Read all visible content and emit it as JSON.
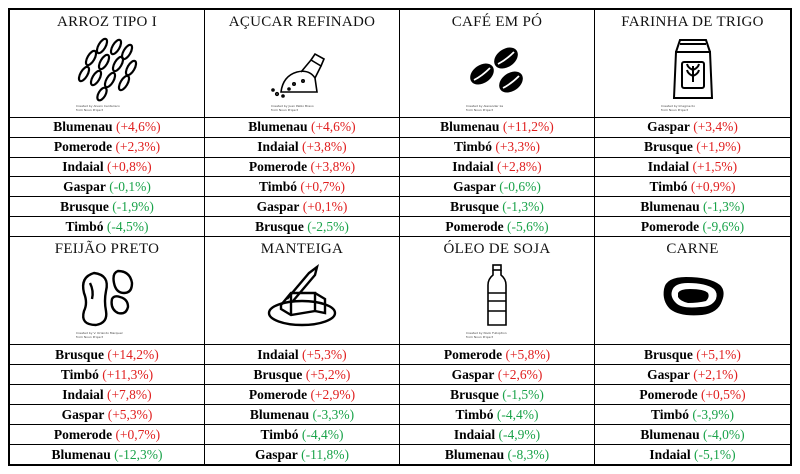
{
  "colors": {
    "increase": "#e02020",
    "decrease": "#1aa34a"
  },
  "products": [
    {
      "title": "ARROZ TIPO I",
      "icon": "rice-icon",
      "credit": [
        "Created by Alvaro Centarisco",
        "from Noun Project"
      ],
      "rows": [
        {
          "city": "Blumenau",
          "value": "(+4,6%)",
          "trend": "up"
        },
        {
          "city": "Pomerode",
          "value": "(+2,3%)",
          "trend": "up"
        },
        {
          "city": "Indaial",
          "value": "(+0,8%)",
          "trend": "up"
        },
        {
          "city": "Gaspar",
          "value": "(-0,1%)",
          "trend": "down"
        },
        {
          "city": "Brusque",
          "value": "(-1,9%)",
          "trend": "down"
        },
        {
          "city": "Timbó",
          "value": "(-4,5%)",
          "trend": "down"
        }
      ]
    },
    {
      "title": "AÇUCAR REFINADO",
      "icon": "sugar-icon",
      "credit": [
        "Created by Juan Pablo Bravo",
        "from Noun Project"
      ],
      "rows": [
        {
          "city": "Blumenau",
          "value": "(+4,6%)",
          "trend": "up"
        },
        {
          "city": "Indaial",
          "value": "(+3,8%)",
          "trend": "up"
        },
        {
          "city": "Pomerode",
          "value": "(+3,8%)",
          "trend": "up"
        },
        {
          "city": "Timbó",
          "value": "(+0,7%)",
          "trend": "up"
        },
        {
          "city": "Gaspar",
          "value": "(+0,1%)",
          "trend": "up"
        },
        {
          "city": "Brusque",
          "value": "(-2,5%)",
          "trend": "down"
        }
      ]
    },
    {
      "title": "CAFÉ EM PÓ",
      "icon": "coffee-beans-icon",
      "credit": [
        "Created by Alexander ka",
        "from Noun Project"
      ],
      "rows": [
        {
          "city": "Blumenau",
          "value": "(+11,2%)",
          "trend": "up"
        },
        {
          "city": "Timbó",
          "value": "(+3,3%)",
          "trend": "up"
        },
        {
          "city": "Indaial",
          "value": "(+2,8%)",
          "trend": "up"
        },
        {
          "city": "Gaspar",
          "value": "(-0,6%)",
          "trend": "down"
        },
        {
          "city": "Brusque",
          "value": "(-1,3%)",
          "trend": "down"
        },
        {
          "city": "Pomerode",
          "value": "(-5,6%)",
          "trend": "down"
        }
      ]
    },
    {
      "title": "FARINHA DE TRIGO",
      "icon": "flour-bag-icon",
      "credit": [
        "Created by Imagine Ilo",
        "from Noun Project"
      ],
      "rows": [
        {
          "city": "Gaspar",
          "value": "(+3,4%)",
          "trend": "up"
        },
        {
          "city": "Brusque",
          "value": "(+1,9%)",
          "trend": "up"
        },
        {
          "city": "Indaial",
          "value": "(+1,5%)",
          "trend": "up"
        },
        {
          "city": "Timbó",
          "value": "(+0,9%)",
          "trend": "up"
        },
        {
          "city": "Blumenau",
          "value": "(-1,3%)",
          "trend": "down"
        },
        {
          "city": "Pomerode",
          "value": "(-9,6%)",
          "trend": "down"
        }
      ]
    },
    {
      "title": "FEIJÃO PRETO",
      "icon": "beans-icon",
      "credit": [
        "Created by V. Orlando Marquez",
        "from Noun Project"
      ],
      "rows": [
        {
          "city": "Brusque",
          "value": "(+14,2%)",
          "trend": "up"
        },
        {
          "city": "Timbó",
          "value": "(+11,3%)",
          "trend": "up"
        },
        {
          "city": "Indaial",
          "value": "(+7,8%)",
          "trend": "up"
        },
        {
          "city": "Gaspar",
          "value": "(+5,3%)",
          "trend": "up"
        },
        {
          "city": "Pomerode",
          "value": "(+0,7%)",
          "trend": "up"
        },
        {
          "city": "Blumenau",
          "value": "(-12,3%)",
          "trend": "down"
        }
      ]
    },
    {
      "title": "MANTEIGA",
      "icon": "butter-icon",
      "credit": [],
      "rows": [
        {
          "city": "Indaial",
          "value": "(+5,3%)",
          "trend": "up"
        },
        {
          "city": "Brusque",
          "value": "(+5,2%)",
          "trend": "up"
        },
        {
          "city": "Pomerode",
          "value": "(+2,9%)",
          "trend": "up"
        },
        {
          "city": "Blumenau",
          "value": "(-3,3%)",
          "trend": "down"
        },
        {
          "city": "Timbó",
          "value": "(-4,4%)",
          "trend": "down"
        },
        {
          "city": "Gaspar",
          "value": "(-11,8%)",
          "trend": "down"
        }
      ]
    },
    {
      "title": "ÓLEO DE SOJA",
      "icon": "oil-bottle-icon",
      "credit": [
        "Created by Nook Fulloption",
        "from Noun Project"
      ],
      "rows": [
        {
          "city": "Pomerode",
          "value": "(+5,8%)",
          "trend": "up"
        },
        {
          "city": "Gaspar",
          "value": "(+2,6%)",
          "trend": "up"
        },
        {
          "city": "Brusque",
          "value": "(-1,5%)",
          "trend": "down"
        },
        {
          "city": "Timbó",
          "value": "(-4,4%)",
          "trend": "down"
        },
        {
          "city": "Indaial",
          "value": "(-4,9%)",
          "trend": "down"
        },
        {
          "city": "Blumenau",
          "value": "(-8,3%)",
          "trend": "down"
        }
      ]
    },
    {
      "title": "CARNE",
      "icon": "steak-icon",
      "credit": [],
      "rows": [
        {
          "city": "Brusque",
          "value": "(+5,1%)",
          "trend": "up"
        },
        {
          "city": "Gaspar",
          "value": "(+2,1%)",
          "trend": "up"
        },
        {
          "city": "Pomerode",
          "value": "(+0,5%)",
          "trend": "up"
        },
        {
          "city": "Timbó",
          "value": "(-3,9%)",
          "trend": "down"
        },
        {
          "city": "Blumenau",
          "value": "(-4,0%)",
          "trend": "down"
        },
        {
          "city": "Indaial",
          "value": "(-5,1%)",
          "trend": "down"
        }
      ]
    }
  ]
}
